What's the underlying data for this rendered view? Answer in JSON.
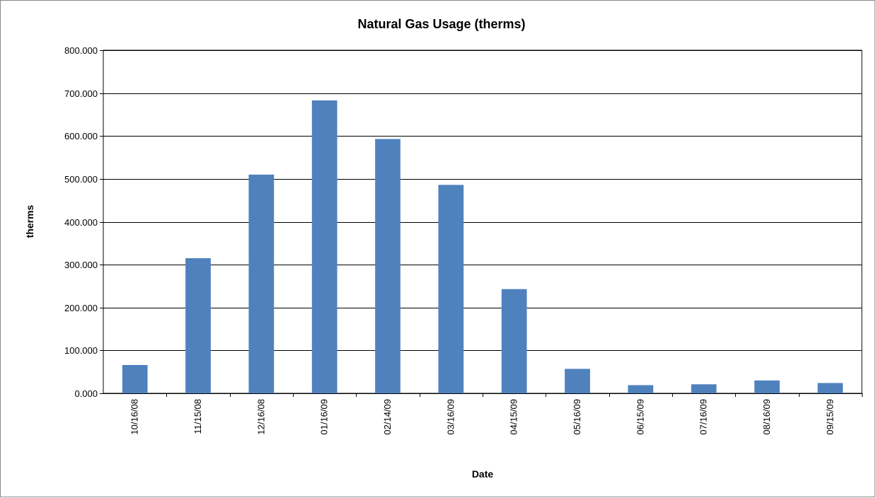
{
  "chart_data": {
    "type": "bar",
    "title": "Natural Gas Usage (therms)",
    "xlabel": "Date",
    "ylabel": "therms",
    "categories": [
      "10/16/08",
      "11/15/08",
      "12/16/08",
      "01/16/09",
      "02/14/09",
      "03/16/09",
      "04/15/09",
      "05/16/09",
      "06/15/09",
      "07/16/09",
      "08/16/09",
      "09/15/09"
    ],
    "values": [
      66,
      315,
      510,
      683,
      593,
      486,
      243,
      57,
      19,
      21,
      30,
      24
    ],
    "ylim": [
      0,
      800
    ],
    "yticks": [
      0,
      100,
      200,
      300,
      400,
      500,
      600,
      700,
      800
    ],
    "ytick_labels": [
      "0.000",
      "100.000",
      "200.000",
      "300.000",
      "400.000",
      "500.000",
      "600.000",
      "700.000",
      "800.000"
    ],
    "grid": true,
    "legend": "none",
    "bar_color": "#4f81bd",
    "grid_color": "#000000"
  }
}
